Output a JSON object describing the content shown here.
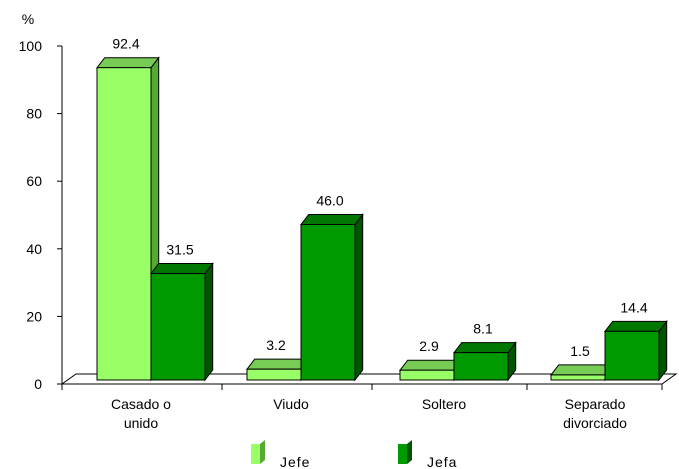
{
  "chart_data": {
    "type": "bar",
    "title": "",
    "ylabel": "%",
    "xlabel": "",
    "ylim": [
      0,
      100
    ],
    "yticks": [
      0,
      20,
      40,
      60,
      80,
      100
    ],
    "categories": [
      [
        "Casado o",
        "unido"
      ],
      [
        "Viudo"
      ],
      [
        "Soltero"
      ],
      [
        "Separado",
        "divorciado"
      ]
    ],
    "series": [
      {
        "name": "Jefe",
        "values": [
          92.4,
          3.2,
          2.9,
          1.5
        ],
        "labels": [
          "92.4",
          "3.2",
          "2.9",
          "1.5"
        ],
        "color": "#99ff66",
        "side_color": "#55aa33",
        "top_color": "#77cc55"
      },
      {
        "name": "Jefa",
        "values": [
          31.5,
          46.0,
          8.1,
          14.4
        ],
        "labels": [
          "31.5",
          "46.0",
          "8.1",
          "14.4"
        ],
        "color": "#009900",
        "side_color": "#005500",
        "top_color": "#007700"
      }
    ],
    "grid": false,
    "legend_position": "bottom",
    "style": "3d-bar"
  }
}
